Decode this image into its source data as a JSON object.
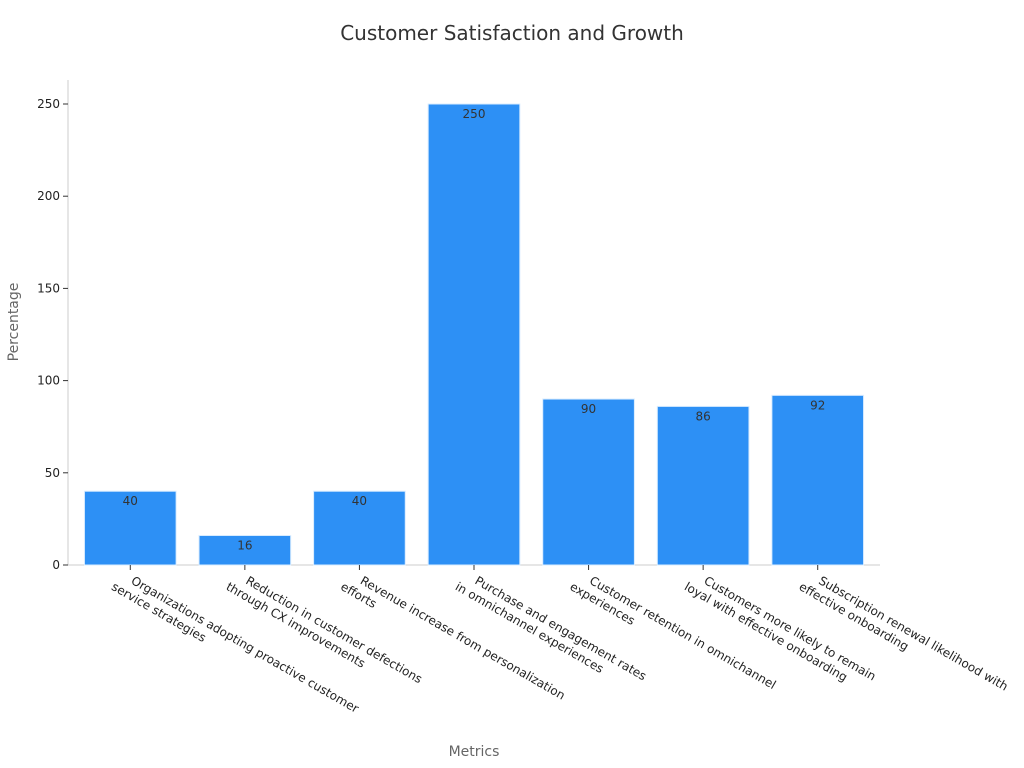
{
  "chart_data": {
    "type": "bar",
    "title": "Customer Satisfaction and Growth",
    "xlabel": "Metrics",
    "ylabel": "Percentage",
    "ylim": [
      0,
      262
    ],
    "yticks": [
      0,
      50,
      100,
      150,
      200,
      250
    ],
    "grid": false,
    "bar_color": "#2d90f5",
    "categories": [
      [
        "Organizations adopting proactive customer",
        "service strategies"
      ],
      [
        "Reduction in customer defections",
        "through CX improvements"
      ],
      [
        "Revenue increase from personalization",
        "efforts"
      ],
      [
        "Purchase and engagement rates",
        "in omnichannel experiences"
      ],
      [
        "Customer retention in omnichannel",
        "experiences"
      ],
      [
        "Customers more likely to remain",
        "loyal with effective onboarding"
      ],
      [
        "Subscription renewal likelihood with",
        "effective onboarding"
      ]
    ],
    "values": [
      40,
      16,
      40,
      250,
      90,
      86,
      92
    ]
  }
}
